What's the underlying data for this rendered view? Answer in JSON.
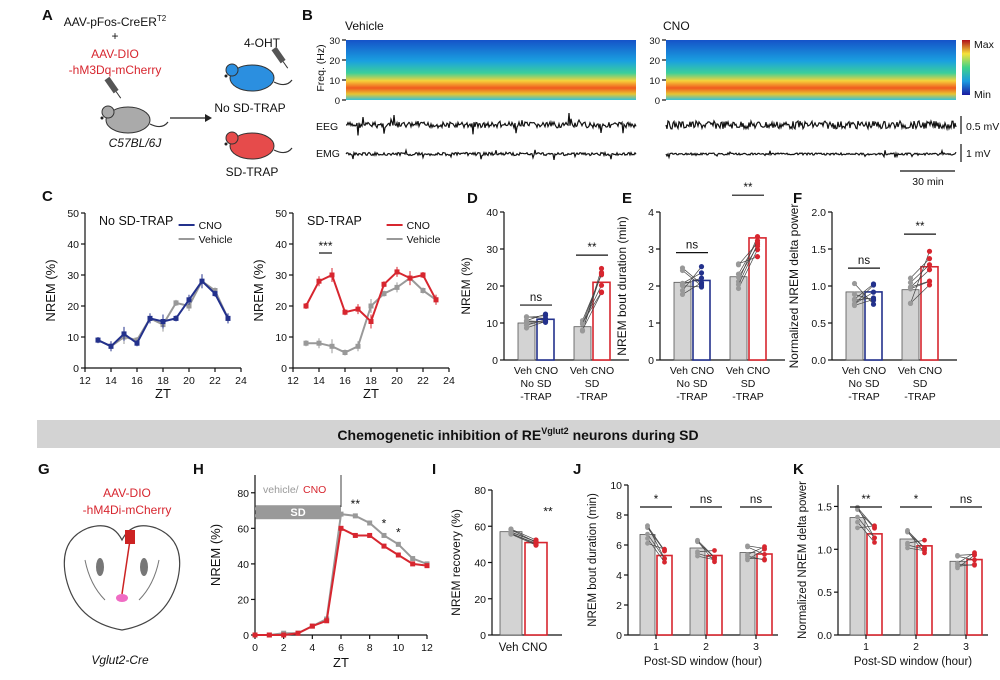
{
  "panelA": {
    "letter": "A",
    "virus1": "AAV-pFos-CreER",
    "virus1_sup": "T2",
    "plus": "+",
    "virus2_l1": "AAV-DIO",
    "virus2_l2": "-hM3Dq-mCherry",
    "drug": "4-OHT",
    "group_no_sd": "No SD-TRAP",
    "strain": "C57BL/6J",
    "group_sd": "SD-TRAP"
  },
  "panelB": {
    "letter": "B",
    "vehicle": "Vehicle",
    "cno": "CNO",
    "freq_label": "Freq. (Hz)",
    "ticks": [
      "30",
      "20",
      "10",
      "0"
    ],
    "cbar_max": "Max",
    "cbar_min": "Min",
    "eeg": "EEG",
    "emg": "EMG",
    "eeg_scale": "0.5 mV",
    "emg_scale": "1 mV",
    "time_scale": "30 min"
  },
  "panelC": {
    "letter": "C",
    "left_title": "No SD-TRAP",
    "right_title": "SD-TRAP",
    "ylabel": "NREM (%)",
    "xlabel": "ZT",
    "legend_cno": "CNO",
    "legend_vehicle": "Vehicle",
    "sig": "***",
    "yticks": [
      "0",
      "10",
      "20",
      "30",
      "40",
      "50"
    ],
    "xticks": [
      "12",
      "14",
      "16",
      "18",
      "20",
      "22",
      "24"
    ],
    "left_cno": [
      9,
      7,
      11,
      8,
      16,
      15,
      16,
      22,
      28,
      24,
      16
    ],
    "left_vehicle": [
      9,
      7,
      10,
      9,
      16,
      14,
      21,
      20,
      28,
      25,
      16
    ],
    "right_cno": [
      20,
      28,
      30,
      18,
      19,
      15,
      27,
      31,
      29,
      30,
      22
    ],
    "right_vehicle": [
      8,
      8,
      7,
      5,
      7,
      20,
      24,
      26,
      29,
      25,
      22
    ]
  },
  "bars": {
    "D": {
      "letter": "D",
      "ylabel": "NREM (%)",
      "yticks": [
        "0",
        "10",
        "20",
        "30",
        "40"
      ],
      "sig": [
        "ns",
        "**"
      ],
      "values": [
        10,
        11,
        9,
        21
      ]
    },
    "E": {
      "letter": "E",
      "ylabel": "NREM bout duration (min)",
      "yticks": [
        "0",
        "1",
        "2",
        "3",
        "4"
      ],
      "sig": [
        "ns",
        "**"
      ],
      "values": [
        2.1,
        2.15,
        2.25,
        3.3
      ]
    },
    "F": {
      "letter": "F",
      "ylabel": "Normalized NREM delta power",
      "yticks": [
        "0.0",
        "0.5",
        "1.0",
        "1.5",
        "2.0"
      ],
      "sig": [
        "ns",
        "**"
      ],
      "values": [
        0.92,
        0.92,
        0.95,
        1.26
      ]
    },
    "xlabels": {
      "veh_cno": "Veh CNO",
      "no_sd": "No SD",
      "sd": "SD",
      "trap": "-TRAP"
    }
  },
  "banner": {
    "text_pre": "Chemogenetic inhibition of RE",
    "text_sup": "Vglut2",
    "text_post": " neurons during SD"
  },
  "panelG": {
    "letter": "G",
    "virus_l1": "AAV-DIO",
    "virus_l2": "-hM4Di-mCherry",
    "strain": "Vglut2-Cre"
  },
  "panelH": {
    "letter": "H",
    "label_vehicle": "vehicle/",
    "label_cno": "CNO",
    "sd": "SD",
    "ylabel": "NREM (%)",
    "xlabel": "ZT",
    "yticks": [
      "0",
      "20",
      "40",
      "60",
      "80"
    ],
    "xticks": [
      "0",
      "2",
      "4",
      "6",
      "8",
      "10",
      "12"
    ],
    "sig": [
      "**",
      "*",
      "*"
    ],
    "vehicle": [
      0,
      0,
      1,
      1,
      5,
      9,
      68,
      67,
      63,
      56,
      51,
      43,
      40
    ],
    "cno": [
      0,
      0,
      0,
      1,
      5,
      8,
      60,
      56,
      56,
      50,
      45,
      40,
      39
    ]
  },
  "panelI": {
    "letter": "I",
    "ylabel": "NREM recovery (%)",
    "yticks": [
      "0",
      "20",
      "40",
      "60",
      "80"
    ],
    "sig": "**",
    "xlabel": "Veh CNO",
    "values": [
      57,
      51
    ]
  },
  "panelJ": {
    "letter": "J",
    "ylabel": "NREM bout duration (min)",
    "xlabel": "Post-SD window (hour)",
    "yticks": [
      "0",
      "2",
      "4",
      "6",
      "8",
      "10"
    ],
    "xticks": [
      "1",
      "2",
      "3"
    ],
    "sig": [
      "*",
      "ns",
      "ns"
    ],
    "veh": [
      6.7,
      5.8,
      5.5
    ],
    "cno": [
      5.3,
      5.3,
      5.4
    ]
  },
  "panelK": {
    "letter": "K",
    "ylabel": "Normalized NREM delta power",
    "xlabel": "Post-SD window (hour)",
    "yticks": [
      "0.0",
      "0.5",
      "1.0",
      "1.5"
    ],
    "xticks": [
      "1",
      "2",
      "3"
    ],
    "sig": [
      "**",
      "*",
      "ns"
    ],
    "veh": [
      1.37,
      1.12,
      0.86
    ],
    "cno": [
      1.18,
      1.04,
      0.88
    ]
  },
  "colors": {
    "blue": "#23318c",
    "gray": "#999999",
    "red": "#d7262f",
    "bar_gray": "#d3d3d3"
  }
}
